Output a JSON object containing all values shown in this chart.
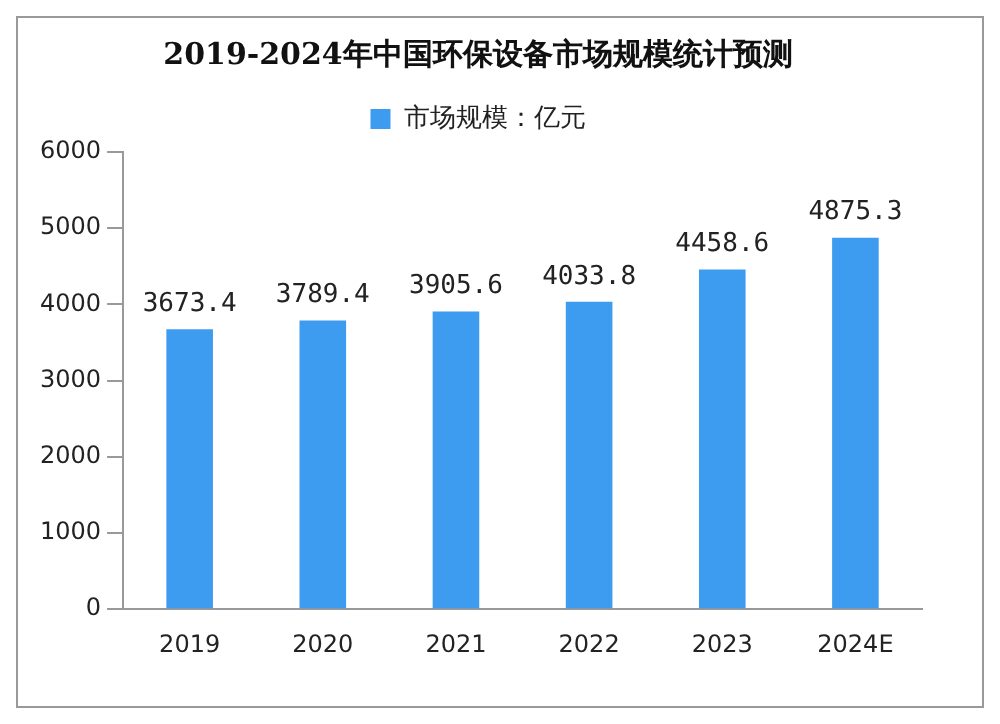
{
  "chart_data": {
    "type": "bar",
    "title": "2019-2024年中国环保设备市场规模统计预测",
    "categories": [
      "2019",
      "2020",
      "2021",
      "2022",
      "2023",
      "2024E"
    ],
    "series": [
      {
        "name": "市场规模：亿元",
        "color": "#3d9cf0",
        "values": [
          3673.4,
          3789.4,
          3905.6,
          4033.8,
          4458.6,
          4875.3
        ]
      }
    ],
    "ylim": [
      0,
      6000
    ],
    "yticks": [
      0,
      1000,
      2000,
      3000,
      4000,
      5000,
      6000
    ],
    "grid": false,
    "legend": "top",
    "data_labels": true
  }
}
